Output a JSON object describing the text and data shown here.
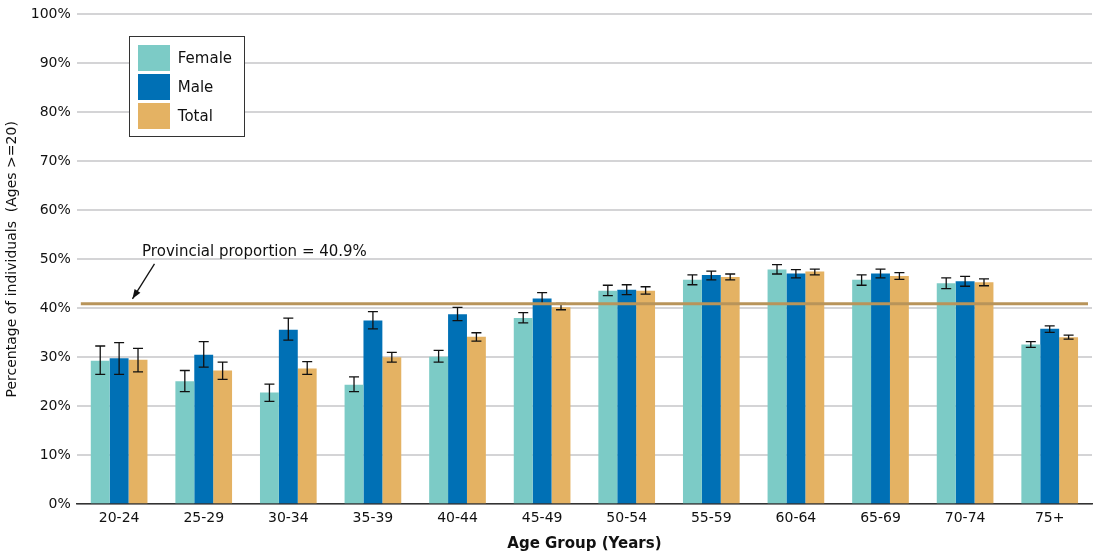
{
  "chart_data": {
    "type": "bar",
    "xlabel": "Age Group (Years)",
    "ylabel": "Percentage of individuals  (Ages >=20)",
    "categories": [
      "20-24",
      "25-29",
      "30-34",
      "35-39",
      "40-44",
      "45-49",
      "50-54",
      "55-59",
      "60-64",
      "65-69",
      "70-74",
      "75+"
    ],
    "series": [
      {
        "name": "Female",
        "color": "#7ccbc6",
        "values": [
          29.3,
          25.1,
          22.8,
          24.4,
          30.1,
          38.0,
          43.6,
          45.8,
          47.9,
          45.8,
          45.1,
          32.6
        ],
        "errors": [
          [
            26.5,
            32.3
          ],
          [
            23.0,
            27.3
          ],
          [
            21.0,
            24.5
          ],
          [
            23.0,
            26.0
          ],
          [
            29.0,
            31.4
          ],
          [
            37.0,
            39.1
          ],
          [
            42.6,
            44.7
          ],
          [
            44.8,
            46.8
          ],
          [
            47.0,
            48.9
          ],
          [
            44.7,
            46.8
          ],
          [
            44.0,
            46.2
          ],
          [
            32.0,
            33.2
          ]
        ]
      },
      {
        "name": "Male",
        "color": "#0070b5",
        "values": [
          29.8,
          30.5,
          35.6,
          37.5,
          38.8,
          42.0,
          43.8,
          46.8,
          47.1,
          47.1,
          45.5,
          35.8
        ],
        "errors": [
          [
            26.5,
            33.0
          ],
          [
            28.0,
            33.2
          ],
          [
            33.5,
            38.0
          ],
          [
            35.8,
            39.3
          ],
          [
            37.5,
            40.2
          ],
          [
            40.8,
            43.2
          ],
          [
            42.8,
            44.8
          ],
          [
            45.8,
            47.6
          ],
          [
            46.2,
            47.9
          ],
          [
            46.2,
            48.0
          ],
          [
            44.5,
            46.5
          ],
          [
            35.1,
            36.4
          ]
        ]
      },
      {
        "name": "Total",
        "color": "#e4b263",
        "values": [
          29.5,
          27.3,
          27.7,
          30.0,
          34.2,
          40.2,
          43.6,
          46.4,
          47.5,
          46.6,
          45.3,
          34.1
        ],
        "errors": [
          [
            27.0,
            31.8
          ],
          [
            25.5,
            29.0
          ],
          [
            26.5,
            29.1
          ],
          [
            29.0,
            31.0
          ],
          [
            33.3,
            35.0
          ],
          [
            39.7,
            41.0
          ],
          [
            42.9,
            44.4
          ],
          [
            45.8,
            47.0
          ],
          [
            46.8,
            48.0
          ],
          [
            45.9,
            47.3
          ],
          [
            44.6,
            46.0
          ],
          [
            33.7,
            34.5
          ]
        ]
      }
    ],
    "ylim": [
      0,
      100
    ],
    "yticks": [
      {
        "value": 0,
        "label": "0%"
      },
      {
        "value": 10,
        "label": "10%"
      },
      {
        "value": 20,
        "label": "20%"
      },
      {
        "value": 30,
        "label": "30%"
      },
      {
        "value": 40,
        "label": "40%"
      },
      {
        "value": 50,
        "label": "50%"
      },
      {
        "value": 60,
        "label": "60%"
      },
      {
        "value": 70,
        "label": "70%"
      },
      {
        "value": 80,
        "label": "80%"
      },
      {
        "value": 90,
        "label": "90%"
      },
      {
        "value": 100,
        "label": "100%"
      }
    ],
    "grid": "y",
    "legend": "top left",
    "ref_lines": [
      {
        "axis": "y",
        "value": 40.9,
        "label": "Provincial proportion = 40.9%",
        "color": "#b8945a"
      }
    ]
  }
}
